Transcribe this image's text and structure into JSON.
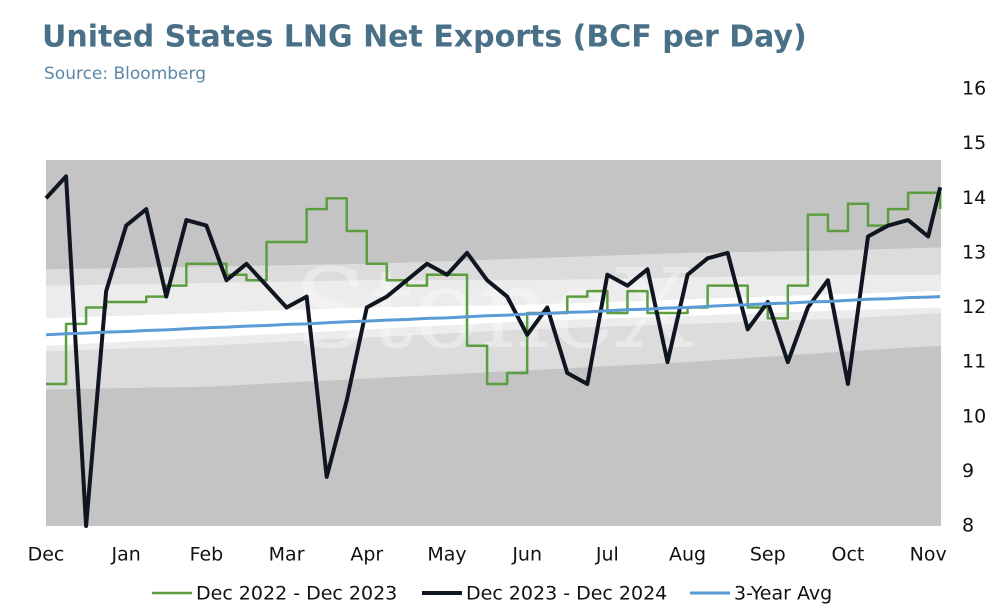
{
  "chart_data": {
    "type": "line",
    "title": "United States LNG Net Exports (BCF per Day)",
    "subtitle": "Source: Bloomberg",
    "watermark": "StoneX",
    "xlim": [
      0,
      11.16
    ],
    "xticks": [
      {
        "value": 0,
        "label": "Dec"
      },
      {
        "value": 1,
        "label": "Jan"
      },
      {
        "value": 2,
        "label": "Feb"
      },
      {
        "value": 3,
        "label": "Mar"
      },
      {
        "value": 4,
        "label": "Apr"
      },
      {
        "value": 5,
        "label": "May"
      },
      {
        "value": 6,
        "label": "Jun"
      },
      {
        "value": 7,
        "label": "Jul"
      },
      {
        "value": 8,
        "label": "Aug"
      },
      {
        "value": 9,
        "label": "Sep"
      },
      {
        "value": 10,
        "label": "Oct"
      },
      {
        "value": 11,
        "label": "Nov"
      }
    ],
    "ylim": [
      8,
      16
    ],
    "yticks": [
      8,
      9,
      10,
      11,
      12,
      13,
      14,
      15,
      16
    ],
    "legend": "bottom",
    "bands": {
      "x": [
        0,
        2,
        4,
        6,
        8,
        10,
        11.16
      ],
      "layers": [
        {
          "color": "#c4c4c4",
          "lower": [
            8,
            8,
            8,
            8,
            8,
            8,
            8
          ],
          "upper": [
            14.7,
            14.7,
            14.7,
            14.7,
            14.7,
            14.7,
            14.7
          ]
        },
        {
          "color": "#dcdcdc",
          "lower": [
            10.5,
            10.55,
            10.7,
            10.85,
            11.0,
            11.2,
            11.3
          ],
          "upper": [
            12.7,
            12.75,
            12.8,
            12.9,
            13.0,
            13.05,
            13.1
          ]
        },
        {
          "color": "#ececec",
          "lower": [
            11.2,
            11.3,
            11.45,
            11.6,
            11.7,
            11.8,
            11.9
          ],
          "upper": [
            12.4,
            12.45,
            12.5,
            12.5,
            12.55,
            12.6,
            12.6
          ]
        },
        {
          "color": "#ffffff",
          "lower": [
            11.3,
            11.45,
            11.6,
            11.75,
            11.85,
            11.95,
            12.0
          ],
          "upper": [
            11.8,
            11.9,
            12.0,
            12.05,
            12.15,
            12.25,
            12.3
          ]
        }
      ]
    },
    "x": [
      0,
      0.25,
      0.5,
      0.75,
      1,
      1.25,
      1.5,
      1.75,
      2,
      2.25,
      2.5,
      2.75,
      3,
      3.25,
      3.5,
      3.75,
      4,
      4.25,
      4.5,
      4.75,
      5,
      5.25,
      5.5,
      5.75,
      6,
      6.25,
      6.5,
      6.75,
      7,
      7.25,
      7.5,
      7.75,
      8,
      8.25,
      8.5,
      8.75,
      9,
      9.25,
      9.5,
      9.75,
      10,
      10.25,
      10.5,
      10.75,
      11,
      11.15
    ],
    "series": [
      {
        "name": "Dec 2022 - Dec 2023",
        "color": "#5c9e3f",
        "width": 2.5,
        "step": true,
        "values": [
          10.6,
          11.7,
          12.0,
          12.1,
          12.1,
          12.2,
          12.4,
          12.8,
          12.8,
          12.6,
          12.5,
          13.2,
          13.2,
          13.8,
          14.0,
          13.4,
          12.8,
          12.5,
          12.4,
          12.6,
          12.6,
          11.3,
          10.6,
          10.8,
          11.9,
          11.9,
          12.2,
          12.3,
          11.9,
          12.3,
          11.9,
          11.9,
          12.0,
          12.4,
          12.4,
          12.0,
          11.8,
          12.4,
          13.7,
          13.4,
          13.9,
          13.5,
          13.8,
          14.1,
          14.1,
          13.8
        ]
      },
      {
        "name": "Dec 2023 - Dec 2024",
        "color": "#0f1620",
        "width": 4,
        "step": false,
        "values": [
          14.0,
          14.4,
          8.0,
          12.3,
          13.5,
          13.8,
          12.2,
          13.6,
          13.5,
          12.5,
          12.8,
          12.4,
          12.0,
          12.2,
          8.9,
          10.3,
          12.0,
          12.2,
          12.5,
          12.8,
          12.6,
          13.0,
          12.5,
          12.2,
          11.5,
          12.0,
          10.8,
          10.6,
          12.6,
          12.4,
          12.7,
          11.0,
          12.6,
          12.9,
          13.0,
          11.6,
          12.1,
          11.0,
          12.0,
          12.5,
          10.6,
          13.3,
          13.5,
          13.6,
          13.3,
          14.2
        ]
      },
      {
        "name": "3-Year Avg",
        "color": "#5b9bd5",
        "width": 3,
        "step": false,
        "values": [
          11.5,
          11.52,
          11.53,
          11.55,
          11.56,
          11.58,
          11.59,
          11.61,
          11.63,
          11.64,
          11.66,
          11.67,
          11.69,
          11.7,
          11.72,
          11.74,
          11.75,
          11.77,
          11.78,
          11.8,
          11.81,
          11.83,
          11.85,
          11.86,
          11.88,
          11.89,
          11.91,
          11.92,
          11.94,
          11.96,
          11.97,
          11.99,
          12.0,
          12.02,
          12.04,
          12.05,
          12.07,
          12.08,
          12.1,
          12.11,
          12.13,
          12.15,
          12.16,
          12.18,
          12.19,
          12.2
        ]
      }
    ]
  }
}
